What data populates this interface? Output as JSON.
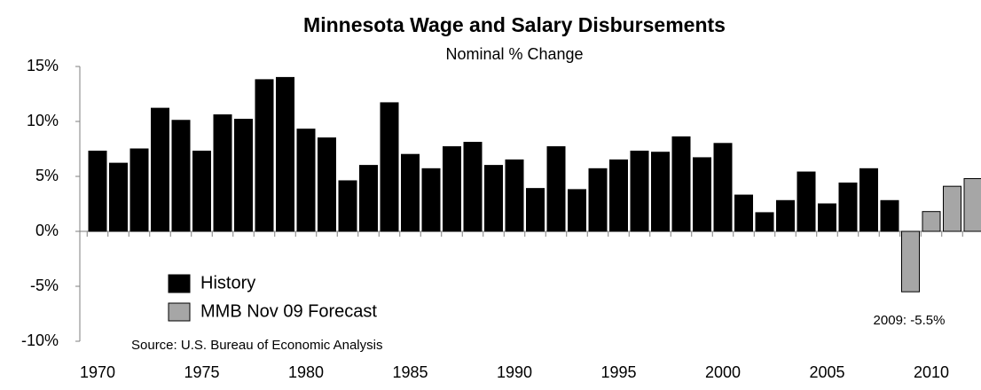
{
  "chart_data": {
    "type": "bar",
    "title": "Minnesota Wage and Salary Disbursements",
    "subtitle": "Nominal % Change",
    "source": "Source: U.S. Bureau of Economic Analysis",
    "annotations": [
      {
        "text": "2009: -5.5%"
      }
    ],
    "categories": [
      "1970",
      null,
      null,
      null,
      null,
      "1975",
      null,
      null,
      null,
      null,
      "1980",
      null,
      null,
      null,
      null,
      "1985",
      null,
      null,
      null,
      null,
      "1990",
      null,
      null,
      null,
      null,
      "1995",
      null,
      null,
      null,
      null,
      "2000",
      null,
      null,
      null,
      null,
      "2005",
      null,
      null,
      null,
      null,
      "2010",
      null,
      null
    ],
    "series": [
      {
        "name": "History",
        "color": "#000000",
        "values": [
          7.3,
          6.2,
          7.5,
          11.2,
          10.1,
          7.3,
          10.6,
          10.2,
          13.8,
          14.0,
          9.3,
          8.5,
          4.6,
          6.0,
          11.7,
          7.0,
          5.7,
          7.7,
          8.1,
          6.0,
          6.5,
          3.9,
          7.7,
          3.8,
          5.7,
          6.5,
          7.3,
          7.2,
          8.6,
          6.7,
          8.0,
          3.3,
          1.7,
          2.8,
          5.4,
          2.5,
          4.4,
          5.7,
          2.8,
          null,
          null,
          null,
          null
        ]
      },
      {
        "name": "MMB Nov 09 Forecast",
        "color": "#a6a6a6",
        "values": [
          null,
          null,
          null,
          null,
          null,
          null,
          null,
          null,
          null,
          null,
          null,
          null,
          null,
          null,
          null,
          null,
          null,
          null,
          null,
          null,
          null,
          null,
          null,
          null,
          null,
          null,
          null,
          null,
          null,
          null,
          null,
          null,
          null,
          null,
          null,
          null,
          null,
          null,
          null,
          -5.5,
          1.8,
          4.1,
          4.8
        ]
      }
    ],
    "ylim": [
      -10,
      15
    ],
    "yticks": [
      {
        "value": -10,
        "label": "-10%"
      },
      {
        "value": -5,
        "label": "-5%"
      },
      {
        "value": 0,
        "label": "0%"
      },
      {
        "value": 5,
        "label": "5%"
      },
      {
        "value": 10,
        "label": "10%"
      },
      {
        "value": 15,
        "label": "15%"
      }
    ],
    "grid": false
  }
}
